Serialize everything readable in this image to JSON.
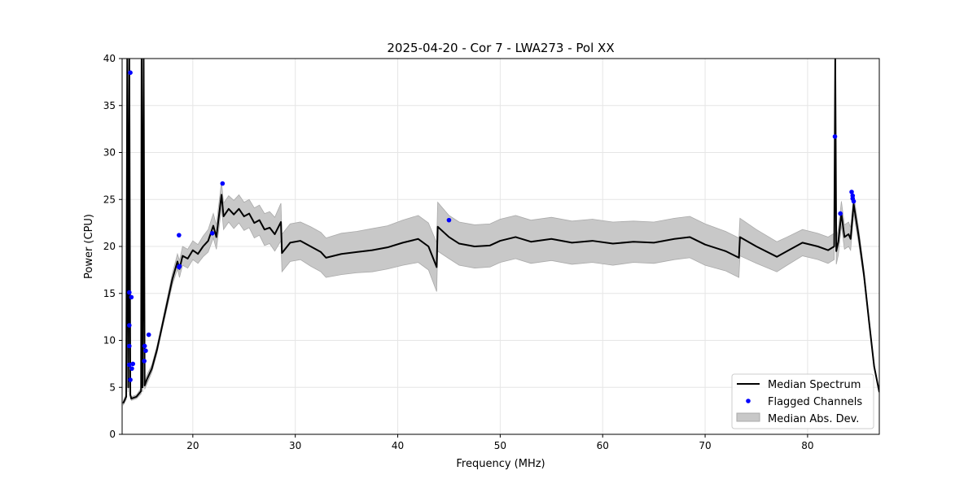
{
  "chart_data": {
    "type": "line",
    "title": "2025-04-20 - Cor 7 - LWA273 - Pol XX",
    "xlabel": "Frequency (MHz)",
    "ylabel": "Power (CPU)",
    "xlim": [
      13.1,
      87.0
    ],
    "ylim": [
      0,
      40
    ],
    "xticks": [
      20,
      30,
      40,
      50,
      60,
      70,
      80
    ],
    "yticks": [
      0,
      5,
      10,
      15,
      20,
      25,
      30,
      35,
      40
    ],
    "grid": true,
    "legend": {
      "placement": "lower-right",
      "entries": [
        "Median Spectrum",
        "Flagged Channels",
        "Median Abs. Dev."
      ]
    },
    "colors": {
      "median": "#000000",
      "flagged": "#0000ff",
      "mad": "#c8c8c8"
    },
    "median_spectrum": [
      [
        13.2,
        3.3,
        0.2
      ],
      [
        13.5,
        4.0,
        0.3
      ],
      [
        13.6,
        40,
        0.5
      ],
      [
        13.7,
        5,
        0.5
      ],
      [
        13.8,
        40,
        0.5
      ],
      [
        13.9,
        4.2,
        0.3
      ],
      [
        14.0,
        3.8,
        0.2
      ],
      [
        14.5,
        4.0,
        0.2
      ],
      [
        14.95,
        4.6,
        0.3
      ],
      [
        15.0,
        40,
        0.5
      ],
      [
        15.1,
        5,
        0.5
      ],
      [
        15.2,
        40,
        0.5
      ],
      [
        15.3,
        5.2,
        0.4
      ],
      [
        15.5,
        5.8,
        0.5
      ],
      [
        16.0,
        7.0,
        0.4
      ],
      [
        16.5,
        9.0,
        0.4
      ],
      [
        17.0,
        11.5,
        0.4
      ],
      [
        17.5,
        14.0,
        0.5
      ],
      [
        18.0,
        16.5,
        0.6
      ],
      [
        18.5,
        18.4,
        0.8
      ],
      [
        18.7,
        17.6,
        0.9
      ],
      [
        19.0,
        19.0,
        1.0
      ],
      [
        19.5,
        18.7,
        1.0
      ],
      [
        20.0,
        19.6,
        1.0
      ],
      [
        20.5,
        19.2,
        1.0
      ],
      [
        21.0,
        20.0,
        1.1
      ],
      [
        21.5,
        20.6,
        1.2
      ],
      [
        22.0,
        22.2,
        1.3
      ],
      [
        22.3,
        21.0,
        1.3
      ],
      [
        22.8,
        25.5,
        1.4
      ],
      [
        23.0,
        23.2,
        1.4
      ],
      [
        23.5,
        24.0,
        1.4
      ],
      [
        24.0,
        23.4,
        1.5
      ],
      [
        24.5,
        24.0,
        1.5
      ],
      [
        25.0,
        23.2,
        1.5
      ],
      [
        25.5,
        23.5,
        1.5
      ],
      [
        26.0,
        22.5,
        1.6
      ],
      [
        26.5,
        22.8,
        1.6
      ],
      [
        27.0,
        21.8,
        1.7
      ],
      [
        27.5,
        22.0,
        1.7
      ],
      [
        28.0,
        21.3,
        1.8
      ],
      [
        28.6,
        22.6,
        2.0
      ],
      [
        28.7,
        19.3,
        2.0
      ],
      [
        29.5,
        20.4,
        2.0
      ],
      [
        30.5,
        20.6,
        2.0
      ],
      [
        31.5,
        20.0,
        2.1
      ],
      [
        32.5,
        19.4,
        2.1
      ],
      [
        33.0,
        18.8,
        2.1
      ],
      [
        34.5,
        19.2,
        2.2
      ],
      [
        36.0,
        19.4,
        2.2
      ],
      [
        37.5,
        19.6,
        2.3
      ],
      [
        39.0,
        19.9,
        2.3
      ],
      [
        40.5,
        20.4,
        2.4
      ],
      [
        42.0,
        20.8,
        2.5
      ],
      [
        43.0,
        20.0,
        2.5
      ],
      [
        43.8,
        17.8,
        2.6
      ],
      [
        43.9,
        22.1,
        2.6
      ],
      [
        45.0,
        21.0,
        2.3
      ],
      [
        46.0,
        20.3,
        2.3
      ],
      [
        47.5,
        20.0,
        2.3
      ],
      [
        49.0,
        20.1,
        2.3
      ],
      [
        50.0,
        20.6,
        2.3
      ],
      [
        51.5,
        21.0,
        2.3
      ],
      [
        53.0,
        20.5,
        2.3
      ],
      [
        55.0,
        20.8,
        2.3
      ],
      [
        57.0,
        20.4,
        2.3
      ],
      [
        59.0,
        20.6,
        2.3
      ],
      [
        61.0,
        20.3,
        2.3
      ],
      [
        63.0,
        20.5,
        2.2
      ],
      [
        65.0,
        20.4,
        2.2
      ],
      [
        67.0,
        20.8,
        2.2
      ],
      [
        68.5,
        21.0,
        2.2
      ],
      [
        70.0,
        20.2,
        2.2
      ],
      [
        72.0,
        19.5,
        2.1
      ],
      [
        73.3,
        18.8,
        2.1
      ],
      [
        73.4,
        21.0,
        2.0
      ],
      [
        75.0,
        20.0,
        1.8
      ],
      [
        77.0,
        18.9,
        1.6
      ],
      [
        78.0,
        19.5,
        1.5
      ],
      [
        79.5,
        20.4,
        1.4
      ],
      [
        81.0,
        20.0,
        1.4
      ],
      [
        82.0,
        19.6,
        1.4
      ],
      [
        82.6,
        20.0,
        1.4
      ],
      [
        82.7,
        40,
        1.4
      ],
      [
        82.8,
        19.5,
        1.4
      ],
      [
        83.0,
        20.5,
        1.4
      ],
      [
        83.3,
        23.5,
        1.3
      ],
      [
        83.6,
        21.0,
        1.3
      ],
      [
        84.0,
        21.3,
        1.3
      ],
      [
        84.2,
        20.8,
        1.2
      ],
      [
        84.5,
        24.5,
        1.0
      ],
      [
        85.0,
        21.0,
        0.8
      ],
      [
        85.5,
        17.0,
        0.5
      ],
      [
        86.0,
        12.0,
        0.3
      ],
      [
        86.5,
        7.2,
        0.2
      ],
      [
        87.0,
        4.5,
        0.2
      ]
    ],
    "flagged_channels": [
      [
        13.9,
        38.5
      ],
      [
        13.8,
        15.1
      ],
      [
        14.0,
        14.6
      ],
      [
        13.8,
        11.6
      ],
      [
        13.8,
        9.4
      ],
      [
        13.8,
        7.4
      ],
      [
        14.15,
        7.5
      ],
      [
        14.05,
        7.0
      ],
      [
        13.9,
        5.8
      ],
      [
        15.7,
        10.6
      ],
      [
        15.3,
        9.4
      ],
      [
        15.4,
        8.9
      ],
      [
        15.26,
        7.8
      ],
      [
        18.65,
        21.2
      ],
      [
        18.65,
        17.8
      ],
      [
        18.7,
        17.9
      ],
      [
        21.9,
        21.4
      ],
      [
        22.9,
        26.7
      ],
      [
        45.0,
        22.8
      ],
      [
        82.67,
        31.7
      ],
      [
        83.2,
        23.5
      ],
      [
        84.3,
        25.8
      ],
      [
        84.4,
        25.4
      ],
      [
        84.4,
        25.1
      ],
      [
        84.5,
        24.8
      ]
    ]
  }
}
